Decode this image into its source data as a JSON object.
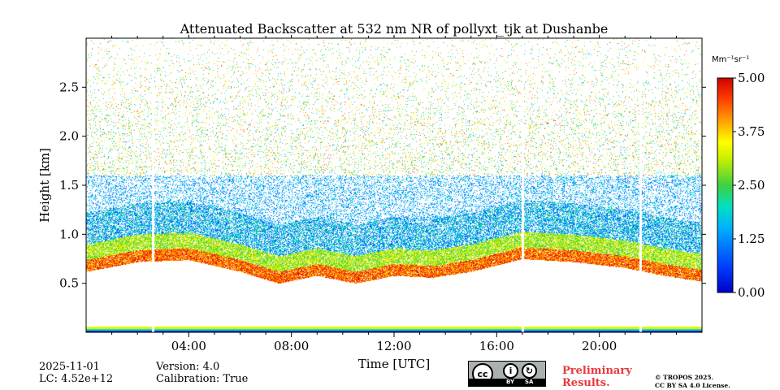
{
  "chart_data": {
    "type": "heatmap",
    "title": "Attenuated Backscatter at 532 nm NR of pollyxt_tjk at Dushanbe",
    "xlabel": "Time [UTC]",
    "ylabel": "Height [km]",
    "x_range_hours": [
      0,
      24
    ],
    "y_range_km": [
      0,
      3.0
    ],
    "x_ticks": [
      "04:00",
      "08:00",
      "12:00",
      "16:00",
      "20:00"
    ],
    "x_tick_hours": [
      4,
      8,
      12,
      16,
      20
    ],
    "y_ticks": [
      "0.5",
      "1.0",
      "1.5",
      "2.0",
      "2.5"
    ],
    "y_tick_values": [
      0.5,
      1.0,
      1.5,
      2.0,
      2.5
    ],
    "colorbar": {
      "unit": "Mm⁻¹sr⁻¹",
      "range": [
        0.0,
        5.0
      ],
      "ticks": [
        "0.00",
        "1.25",
        "2.50",
        "3.75",
        "5.00"
      ],
      "tick_values": [
        0.0,
        1.25,
        2.5,
        3.75,
        5.0
      ],
      "colormap": "jet"
    },
    "data_gaps_hours": [
      [
        2.55,
        2.65
      ],
      [
        16.95,
        17.05
      ],
      [
        21.55,
        21.65
      ]
    ],
    "boundary_layer_top_km": [
      {
        "hour": 0,
        "km": 0.62
      },
      {
        "hour": 2,
        "km": 0.72
      },
      {
        "hour": 4,
        "km": 0.74
      },
      {
        "hour": 6,
        "km": 0.62
      },
      {
        "hour": 7.5,
        "km": 0.5
      },
      {
        "hour": 9,
        "km": 0.58
      },
      {
        "hour": 10.5,
        "km": 0.5
      },
      {
        "hour": 12,
        "km": 0.58
      },
      {
        "hour": 13.5,
        "km": 0.56
      },
      {
        "hour": 15,
        "km": 0.62
      },
      {
        "hour": 17,
        "km": 0.75
      },
      {
        "hour": 19,
        "km": 0.72
      },
      {
        "hour": 21,
        "km": 0.66
      },
      {
        "hour": 22.5,
        "km": 0.58
      },
      {
        "hour": 24,
        "km": 0.52
      }
    ]
  },
  "info": {
    "date": "2025-11-01",
    "lc": "LC: 4.52e+12",
    "version": "Version: 4.0",
    "calibration": "Calibration: True"
  },
  "license": {
    "badge_left": "BY",
    "badge_right": "SA",
    "preliminary_line1": "Preliminary",
    "preliminary_line2": "Results.",
    "copyright_line1": "© TROPOS 2025.",
    "copyright_line2": "CC BY SA 4.0 License."
  }
}
